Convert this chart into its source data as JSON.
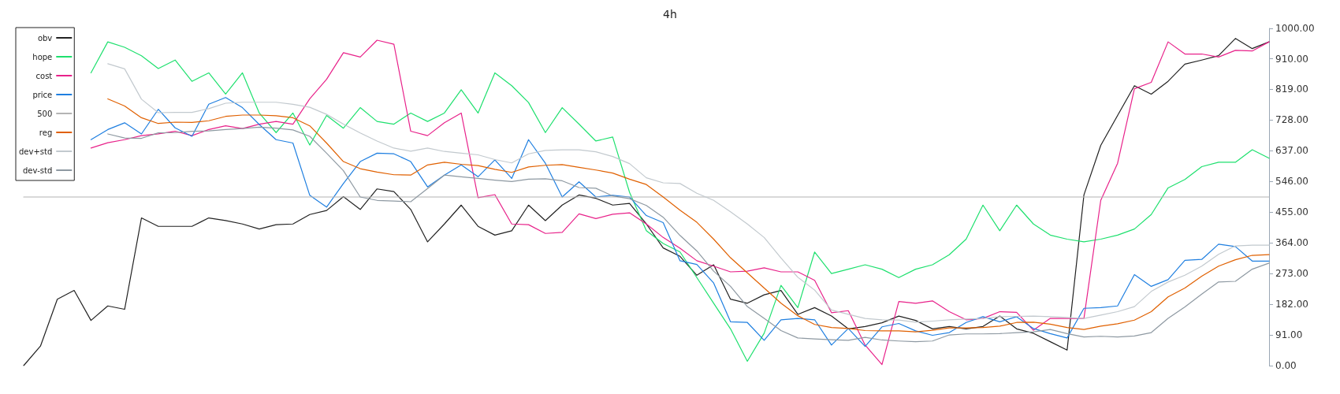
{
  "chart_data": {
    "type": "line",
    "title": "4h",
    "categories": [
      null,
      null,
      null,
      null,
      null,
      null,
      null,
      null,
      null,
      null,
      null,
      null,
      null,
      null,
      null,
      null,
      null,
      null,
      null,
      null,
      null,
      null,
      null,
      null,
      null,
      null,
      null,
      null,
      null,
      null,
      null,
      null,
      null,
      null,
      null,
      null,
      null,
      null,
      null,
      null,
      null,
      null,
      null,
      null,
      null,
      null,
      null,
      null,
      null,
      null,
      null,
      null,
      null,
      null,
      null,
      null,
      null,
      null,
      null,
      null,
      null,
      null,
      null,
      null,
      null,
      null,
      null,
      null,
      null,
      null,
      null,
      null,
      null,
      null,
      null
    ],
    "series": [
      {
        "name": "obv",
        "color": "#222222",
        "values": [
          0,
          58,
          197,
          223,
          134,
          177,
          167,
          438,
          413,
          413,
          413,
          438,
          430,
          420,
          405,
          418,
          420,
          448,
          460,
          501,
          463,
          524,
          516,
          463,
          367,
          420,
          476,
          413,
          387,
          400,
          476,
          430,
          476,
          506,
          496,
          476,
          481,
          420,
          349,
          324,
          268,
          299,
          197,
          185,
          210,
          223,
          152,
          172,
          147,
          109,
          116,
          127,
          147,
          134,
          109,
          116,
          109,
          116,
          147,
          109,
          96,
          71,
          46,
          506,
          653,
          742,
          830,
          805,
          843,
          894,
          906,
          919,
          970,
          940,
          960
        ]
      },
      {
        "name": "hope",
        "color": "#1ee06e",
        "values": [
          null,
          null,
          null,
          null,
          868,
          960,
          944,
          919,
          881,
          906,
          843,
          868,
          805,
          868,
          749,
          691,
          749,
          654,
          742,
          704,
          765,
          724,
          716,
          749,
          724,
          749,
          818,
          749,
          868,
          830,
          780,
          691,
          765,
          716,
          666,
          678,
          514,
          400,
          362,
          337,
          261,
          185,
          109,
          13,
          96,
          238,
          172,
          337,
          273,
          286,
          299,
          286,
          261,
          286,
          299,
          329,
          375,
          476,
          400,
          476,
          420,
          387,
          375,
          367,
          375,
          387,
          405,
          448,
          527,
          552,
          590,
          603,
          603,
          640,
          615
        ]
      },
      {
        "name": "cost",
        "color": "#e8228a",
        "values": [
          null,
          null,
          null,
          null,
          645,
          661,
          670,
          682,
          687,
          695,
          682,
          700,
          711,
          703,
          716,
          724,
          716,
          791,
          849,
          928,
          915,
          965,
          953,
          695,
          682,
          720,
          749,
          498,
          507,
          420,
          418,
          392,
          395,
          450,
          436,
          449,
          453,
          420,
          380,
          348,
          311,
          295,
          278,
          280,
          290,
          278,
          278,
          253,
          157,
          163,
          61,
          3,
          190,
          185,
          192,
          160,
          136,
          140,
          160,
          158,
          105,
          140,
          140,
          140,
          490,
          600,
          821,
          840,
          960,
          924,
          924,
          915,
          935,
          933,
          960
        ]
      },
      {
        "name": "price",
        "color": "#1f7fe0",
        "values": [
          null,
          null,
          null,
          null,
          670,
          700,
          720,
          687,
          760,
          705,
          680,
          775,
          795,
          765,
          715,
          670,
          660,
          505,
          470,
          540,
          605,
          630,
          628,
          605,
          530,
          565,
          595,
          560,
          610,
          555,
          670,
          600,
          500,
          545,
          500,
          505,
          500,
          445,
          424,
          311,
          300,
          245,
          130,
          128,
          75,
          136,
          140,
          136,
          61,
          110,
          57,
          115,
          125,
          103,
          90,
          98,
          128,
          145,
          130,
          145,
          110,
          95,
          82,
          170,
          172,
          177,
          270,
          235,
          255,
          312,
          315,
          360,
          353,
          310,
          310
        ]
      },
      {
        "name": "500",
        "color": "#b4b4b4",
        "values": [
          500,
          500,
          500,
          500,
          500,
          500,
          500,
          500,
          500,
          500,
          500,
          500,
          500,
          500,
          500,
          500,
          500,
          500,
          500,
          500,
          500,
          500,
          500,
          500,
          500,
          500,
          500,
          500,
          500,
          500,
          500,
          500,
          500,
          500,
          500,
          500,
          500,
          500,
          500,
          500,
          500,
          500,
          500,
          500,
          500,
          500,
          500,
          500,
          500,
          500,
          500,
          500,
          500,
          500,
          500,
          500,
          500,
          500,
          500,
          500,
          500,
          500,
          500,
          500,
          500,
          500,
          500,
          500,
          500,
          500,
          500,
          500,
          500,
          500,
          500
        ]
      },
      {
        "name": "reg",
        "color": "#e06000",
        "values": [
          null,
          null,
          null,
          null,
          null,
          791,
          770,
          735,
          718,
          722,
          721,
          726,
          739,
          743,
          743,
          741,
          735,
          711,
          660,
          605,
          584,
          574,
          566,
          565,
          595,
          603,
          597,
          593,
          582,
          573,
          589,
          594,
          596,
          588,
          580,
          571,
          553,
          537,
          500,
          461,
          425,
          375,
          320,
          275,
          230,
          185,
          148,
          122,
          113,
          110,
          104,
          103,
          103,
          100,
          105,
          112,
          112,
          113,
          117,
          128,
          129,
          123,
          113,
          107,
          117,
          124,
          135,
          160,
          204,
          230,
          265,
          295,
          314,
          327,
          329
        ]
      },
      {
        "name": "dev+std",
        "color": "#c2c9ce",
        "values": [
          null,
          null,
          null,
          null,
          null,
          895,
          880,
          790,
          750,
          751,
          751,
          762,
          778,
          781,
          781,
          781,
          775,
          766,
          745,
          716,
          690,
          666,
          645,
          636,
          645,
          635,
          630,
          625,
          611,
          601,
          628,
          638,
          640,
          640,
          634,
          620,
          599,
          557,
          542,
          540,
          511,
          490,
          456,
          420,
          380,
          319,
          262,
          224,
          165,
          152,
          140,
          136,
          135,
          129,
          132,
          136,
          138,
          140,
          145,
          146,
          147,
          145,
          143,
          140,
          150,
          160,
          175,
          220,
          248,
          268,
          295,
          330,
          355,
          357,
          357
        ]
      },
      {
        "name": "dev-std",
        "color": "#8e99a2",
        "values": [
          null,
          null,
          null,
          null,
          null,
          687,
          675,
          674,
          690,
          691,
          695,
          696,
          700,
          703,
          707,
          704,
          699,
          680,
          630,
          578,
          500,
          490,
          488,
          486,
          525,
          565,
          560,
          555,
          550,
          546,
          553,
          554,
          548,
          528,
          526,
          503,
          495,
          475,
          440,
          386,
          340,
          280,
          235,
          175,
          140,
          104,
          82,
          79,
          77,
          75,
          84,
          76,
          73,
          71,
          73,
          91,
          94,
          94,
          95,
          98,
          100,
          107,
          95,
          85,
          87,
          85,
          88,
          98,
          140,
          174,
          212,
          248,
          250,
          286,
          304
        ]
      }
    ],
    "ylim": [
      0,
      1000
    ],
    "yticks": [
      {
        "value": 0,
        "label": "0.00"
      },
      {
        "value": 91,
        "label": "91.00"
      },
      {
        "value": 182,
        "label": "182.00"
      },
      {
        "value": 273,
        "label": "273.00"
      },
      {
        "value": 364,
        "label": "364.00"
      },
      {
        "value": 455,
        "label": "455.00"
      },
      {
        "value": 546,
        "label": "546.00"
      },
      {
        "value": 637,
        "label": "637.00"
      },
      {
        "value": 728,
        "label": "728.00"
      },
      {
        "value": 819,
        "label": "819.00"
      },
      {
        "value": 910,
        "label": "910.00"
      },
      {
        "value": 1000,
        "label": "1000.00"
      }
    ],
    "tick_labels": "y",
    "legend": "top left",
    "marker": "none",
    "line_style": "solid"
  }
}
